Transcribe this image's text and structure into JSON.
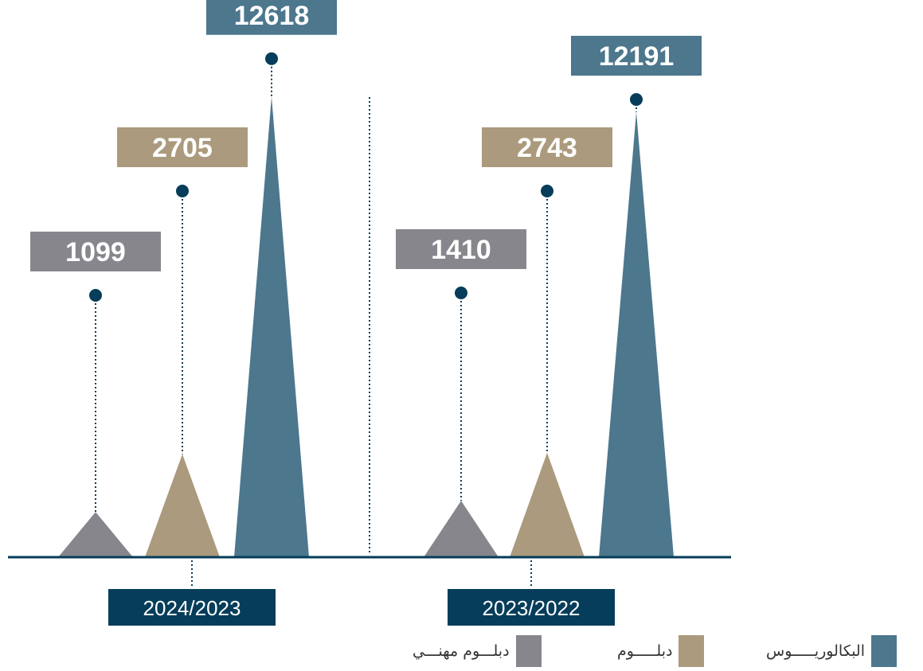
{
  "colors": {
    "bachelor": "#4c778d",
    "diploma": "#ab9a7d",
    "vocational": "#87868d",
    "year_box": "#053d5a",
    "marker": "#053d5a",
    "axis": "#053d5a"
  },
  "chart_data": {
    "type": "bar",
    "categories": [
      "2024/2023",
      "2023/2022"
    ],
    "series": [
      {
        "name": "دبلـــوم مهنـــي",
        "key": "vocational",
        "values": [
          1099,
          1410
        ]
      },
      {
        "name": "دبلـــــوم",
        "key": "diploma",
        "values": [
          2705,
          2743
        ]
      },
      {
        "name": "البكالوريـــــوس",
        "key": "bachelor",
        "values": [
          12618,
          12191
        ]
      }
    ],
    "title": "",
    "xlabel": "",
    "ylabel": "",
    "legend_position": "bottom-right",
    "grid": false
  }
}
